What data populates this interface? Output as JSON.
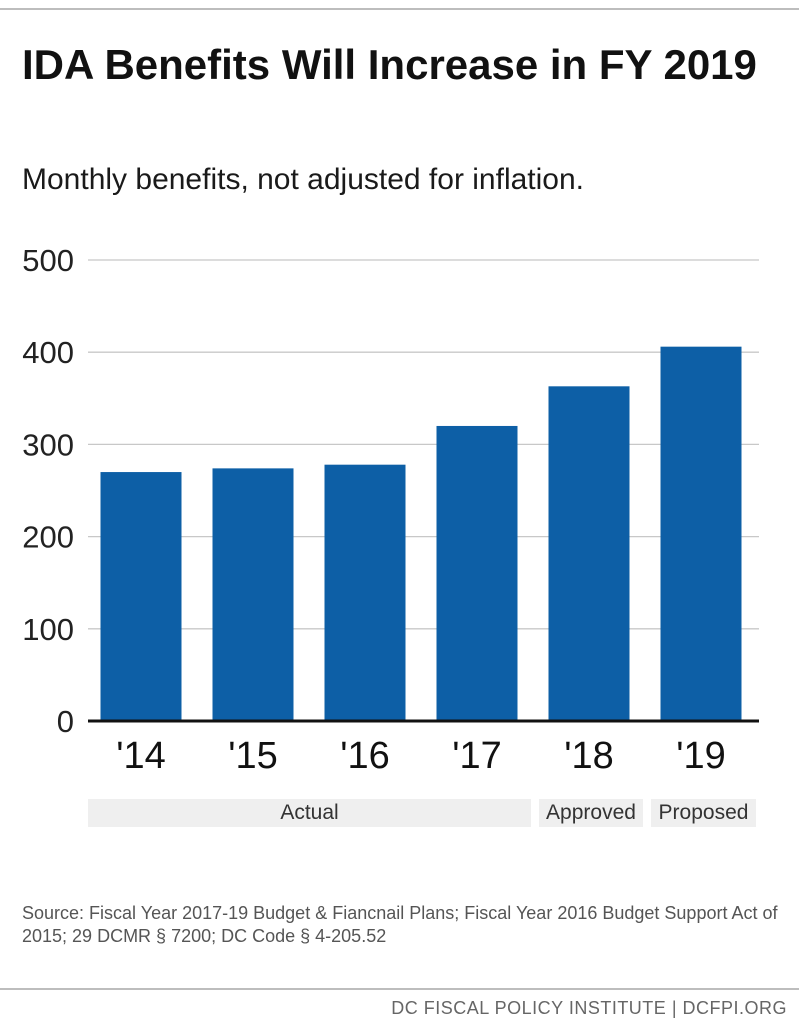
{
  "header": {
    "title": "IDA Benefits Will Increase in FY 2019",
    "subtitle": "Monthly benefits, not adjusted for inflation."
  },
  "chart_data": {
    "type": "bar",
    "categories": [
      "'14",
      "'15",
      "'16",
      "'17",
      "'18",
      "'19"
    ],
    "values": [
      270,
      274,
      278,
      320,
      363,
      406
    ],
    "ylim": [
      0,
      500
    ],
    "yticks": [
      0,
      100,
      200,
      300,
      400,
      500
    ],
    "grid": true,
    "bar_color": "#0d5fa6",
    "groups": [
      {
        "label": "Actual",
        "categories": [
          "'14",
          "'15",
          "'16",
          "'17"
        ]
      },
      {
        "label": "Approved",
        "categories": [
          "'18"
        ]
      },
      {
        "label": "Proposed",
        "categories": [
          "'19"
        ]
      }
    ]
  },
  "source": "Source: Fiscal Year 2017-19 Budget & Fiancnail Plans; Fiscal Year 2016 Budget Support Act of 2015; 29 DCMR § 7200; DC Code § 4-205.52",
  "footer": "DC FISCAL POLICY INSTITUTE | DCFPI.ORG"
}
